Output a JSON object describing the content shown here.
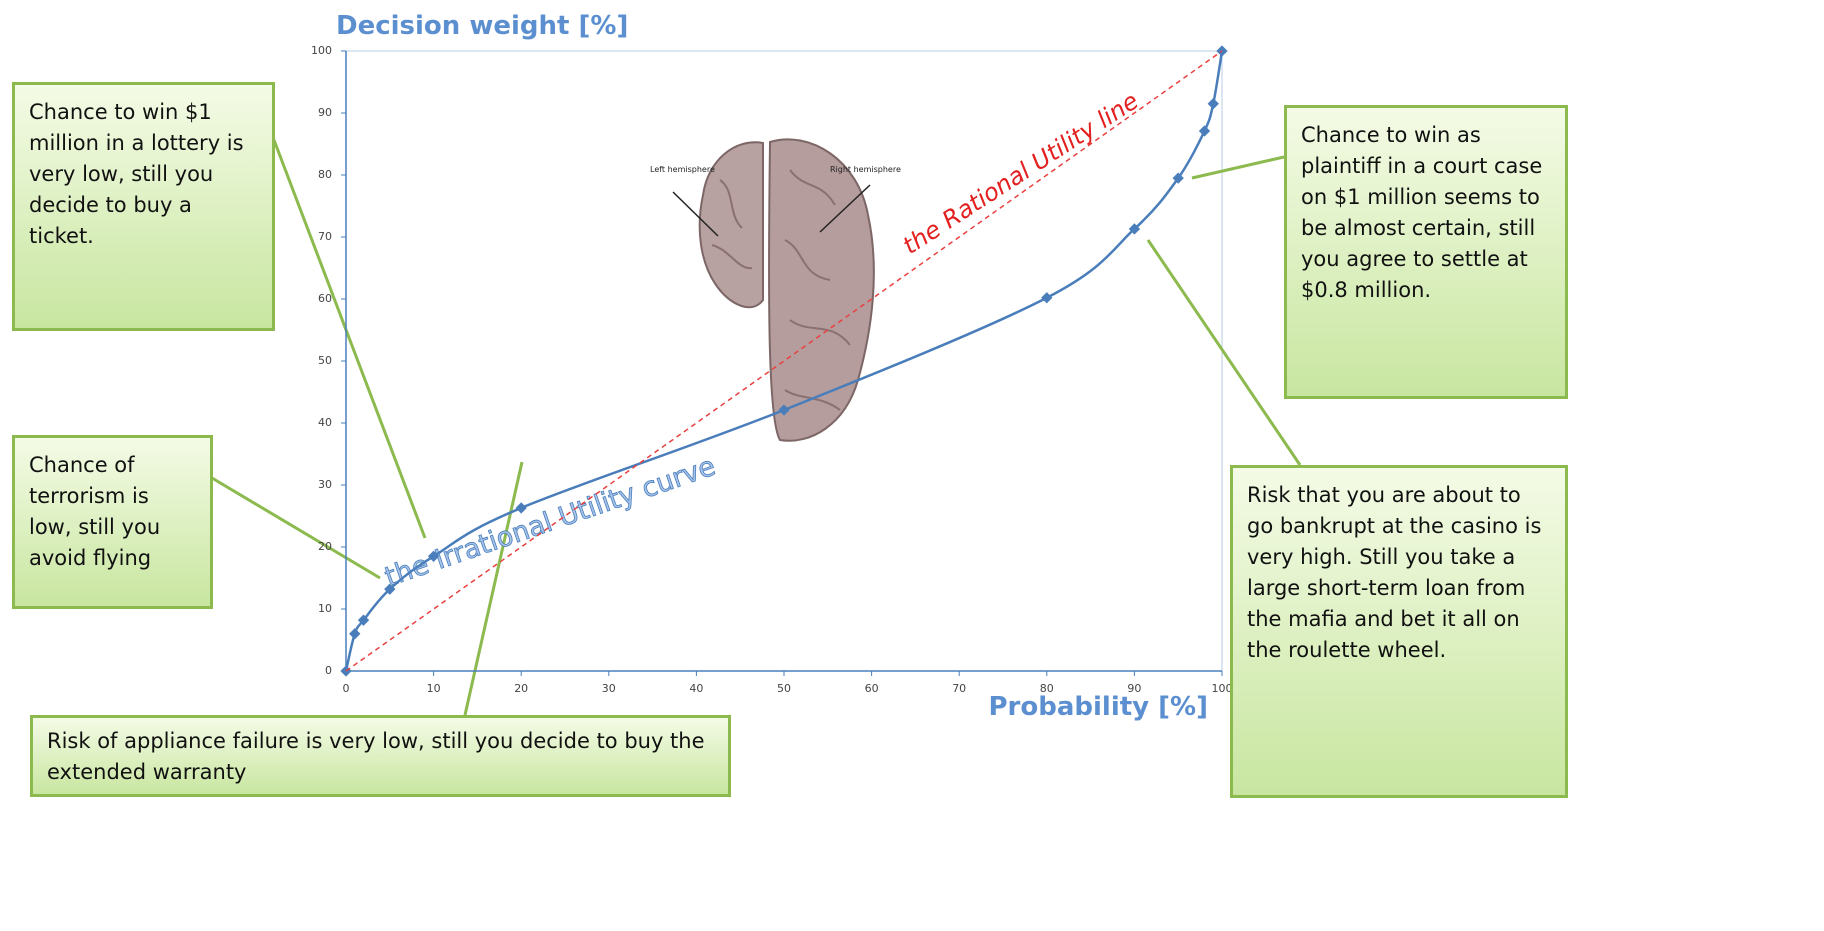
{
  "chart_data": {
    "type": "line",
    "title": "Decision weight [%]",
    "x_label": "Probability [%]",
    "series": [
      {
        "color": "#4a7ebb",
        "dash": false,
        "x": [
          0,
          1,
          2,
          5,
          10,
          20,
          50,
          80,
          90,
          95,
          98,
          99,
          100
        ],
        "values": [
          0,
          6,
          8.2,
          13.2,
          18.5,
          26.3,
          42.1,
          60.2,
          71.3,
          79.5,
          87.1,
          91.5,
          100
        ]
      },
      {
        "color": "#e8403f",
        "dash": true,
        "x": [
          0,
          100
        ],
        "values": [
          0,
          100
        ]
      }
    ],
    "xlim": [
      0,
      100
    ],
    "ylim": [
      0,
      100
    ],
    "xticks": [
      0,
      10,
      20,
      30,
      40,
      50,
      60,
      70,
      80,
      90,
      100
    ],
    "yticks": [
      0,
      10,
      20,
      30,
      40,
      50,
      60,
      70,
      80,
      90,
      100
    ],
    "annotations": [
      "the Rational Utility line",
      "the Irrational Utility curve",
      "Left hemisphere",
      "Right hemisphere"
    ],
    "callouts": [
      "Chance to win $1 million in a lottery is very low, still you decide to buy a ticket.",
      "Chance of terrorism is low, still you avoid flying",
      "Risk of appliance failure is very low, still you decide to buy the extended warranty",
      "Chance to win as plaintiff in a court case on $1 million seems to be almost certain, still you agree to settle at $0.8 million.",
      "Risk that you are about to go bankrupt at the casino is very high. Still you take a large short-term loan from the mafia and bet it all on the roulette wheel."
    ]
  }
}
